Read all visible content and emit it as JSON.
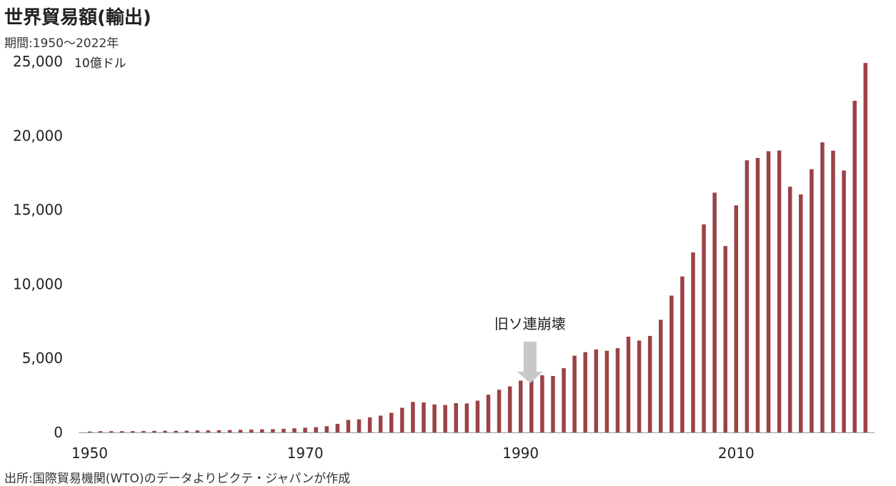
{
  "title": "世界貿易額(輸出)",
  "subtitle": "期間:1950～2022年",
  "source": "出所:国際貿易機関(WTO)のデータよりピクテ・ジャパンが作成",
  "chart_data": {
    "type": "bar",
    "title": "世界貿易額(輸出)",
    "ylabel": "10億ドル",
    "xlabel": "",
    "ylim": [
      0,
      25000
    ],
    "yticks": [
      "0",
      "5,000",
      "10,000",
      "15,000",
      "20,000",
      "25,000"
    ],
    "ytick_values": [
      0,
      5000,
      10000,
      15000,
      20000,
      25000
    ],
    "xtick_labels": [
      "1950",
      "1970",
      "1990",
      "2010"
    ],
    "xtick_years": [
      1950,
      1970,
      1990,
      2010
    ],
    "bar_color": "#9b4246",
    "axis_color": "#999999",
    "annotation": {
      "text": "旧ソ連崩壊",
      "year": 1991,
      "arrow_color": "#c8c8c8"
    },
    "categories": [
      1950,
      1951,
      1952,
      1953,
      1954,
      1955,
      1956,
      1957,
      1958,
      1959,
      1960,
      1961,
      1962,
      1963,
      1964,
      1965,
      1966,
      1967,
      1968,
      1969,
      1970,
      1971,
      1972,
      1973,
      1974,
      1975,
      1976,
      1977,
      1978,
      1979,
      1980,
      1981,
      1982,
      1983,
      1984,
      1985,
      1986,
      1987,
      1988,
      1989,
      1990,
      1991,
      1992,
      1993,
      1994,
      1995,
      1996,
      1997,
      1998,
      1999,
      2000,
      2001,
      2002,
      2003,
      2004,
      2005,
      2006,
      2007,
      2008,
      2009,
      2010,
      2011,
      2012,
      2013,
      2014,
      2015,
      2016,
      2017,
      2018,
      2019,
      2020,
      2021,
      2022
    ],
    "values": [
      62,
      84,
      82,
      84,
      87,
      95,
      104,
      113,
      109,
      116,
      130,
      134,
      142,
      157,
      175,
      190,
      208,
      218,
      243,
      277,
      317,
      354,
      419,
      579,
      840,
      880,
      1010,
      1130,
      1320,
      1660,
      2050,
      2020,
      1880,
      1850,
      1970,
      1950,
      2140,
      2540,
      2880,
      3100,
      3490,
      3530,
      3850,
      3800,
      4330,
      5170,
      5410,
      5590,
      5500,
      5680,
      6450,
      6190,
      6500,
      7590,
      9220,
      10510,
      12130,
      14020,
      16160,
      12560,
      15300,
      18340,
      18500,
      18950,
      19000,
      16560,
      16040,
      17740,
      19550,
      18990,
      17650,
      22350,
      24900
    ]
  }
}
